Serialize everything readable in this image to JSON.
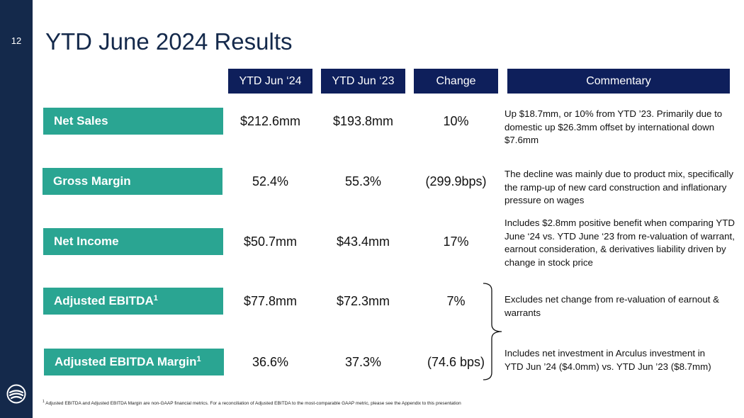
{
  "page_number": "12",
  "title": "YTD June 2024 Results",
  "headers": {
    "col1": "YTD Jun ‘24",
    "col2": "YTD Jun ‘23",
    "col3": "Change",
    "col4": "Commentary"
  },
  "rows": [
    {
      "label": "Net Sales",
      "sup": "",
      "ytd24": "$212.6mm",
      "ytd23": "$193.8mm",
      "change": "10%",
      "commentary": "Up $18.7mm, or 10% from YTD ’23. Primarily due to domestic up $26.3mm offset by international down $7.6mm"
    },
    {
      "label": "Gross Margin",
      "sup": "",
      "ytd24": "52.4%",
      "ytd23": "55.3%",
      "change": "(299.9bps)",
      "commentary": "The decline was mainly due to product mix, specifically the ramp-up of new card construction and inflationary pressure on wages"
    },
    {
      "label": "Net Income",
      "sup": "",
      "ytd24": "$50.7mm",
      "ytd23": "$43.4mm",
      "change": "17%",
      "commentary": "Includes $2.8mm positive benefit when comparing YTD June ‘24 vs. YTD June ‘23 from re-valuation of warrant, earnout consideration, & derivatives liability driven by change in stock price"
    },
    {
      "label": "Adjusted EBITDA",
      "sup": "1",
      "ytd24": "$77.8mm",
      "ytd23": "$72.3mm",
      "change": "7%",
      "commentary": "Excludes net change from re-valuation of earnout & warrants"
    },
    {
      "label": "Adjusted EBITDA Margin",
      "sup": "1",
      "ytd24": "36.6%",
      "ytd23": "37.3%",
      "change": "(74.6 bps)",
      "commentary": "Includes net investment in Arculus investment in YTD Jun ’24 ($4.0mm) vs. YTD Jun ’23 ($8.7mm)"
    }
  ],
  "footnote": {
    "marker": "1",
    "text": "Adjusted EBITDA and Adjusted EBITDA Margin are non-GAAP financial metrics. For a reconciliation of Adjusted EBITDA to the most-comparable GAAP metric, please see the Appendix to this presentation"
  },
  "colors": {
    "navy": "#14294b",
    "header_navy": "#0e1f5b",
    "teal": "#2aa592"
  },
  "icons": {
    "logo": "company-logo-icon"
  }
}
